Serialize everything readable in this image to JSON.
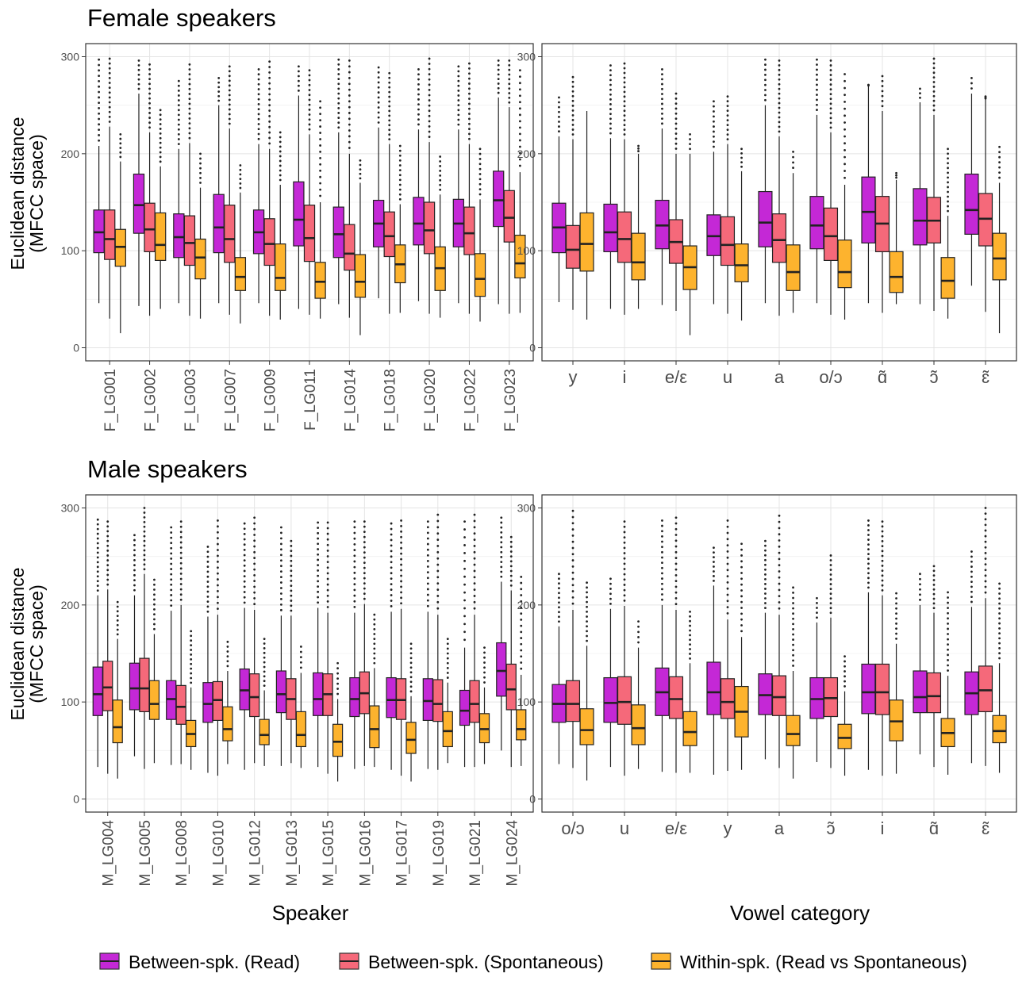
{
  "legend": {
    "items": [
      {
        "label": "Between-spk. (Read)",
        "color": "#C428D6"
      },
      {
        "label": "Between-spk. (Spontaneous)",
        "color": "#F5697A"
      },
      {
        "label": "Within-spk. (Read vs Spontaneous)",
        "color": "#FDB32E"
      }
    ]
  },
  "rows": [
    {
      "title": "Female speakers"
    },
    {
      "title": "Male speakers"
    }
  ],
  "axis_labels": {
    "y": [
      "Euclidean distance",
      "(MFCC space)"
    ],
    "x_left": "Speaker",
    "x_right": "Vowel category"
  },
  "chart_data": [
    {
      "type": "box",
      "panel": "female-speaker",
      "ylim": [
        0,
        300
      ],
      "yticks": [
        0,
        100,
        200,
        300
      ],
      "grid": true,
      "categories": [
        "F_LG001",
        "F_LG002",
        "F_LG003",
        "F_LG007",
        "F_LG009",
        "F_LG011",
        "F_LG014",
        "F_LG018",
        "F_LG020",
        "F_LG022",
        "F_LG023"
      ],
      "series": [
        {
          "name": "Between-spk. (Read)",
          "medians": [
            119,
            147,
            114,
            124,
            119,
            132,
            117,
            128,
            128,
            128,
            152
          ],
          "q1": [
            98,
            118,
            93,
            98,
            97,
            105,
            93,
            104,
            106,
            104,
            125
          ],
          "q3": [
            142,
            179,
            138,
            158,
            142,
            171,
            145,
            152,
            155,
            153,
            182
          ],
          "whisker_low": [
            46,
            43,
            46,
            46,
            46,
            40,
            45,
            51,
            48,
            46,
            45
          ],
          "whisker_high": [
            208,
            262,
            205,
            250,
            210,
            260,
            222,
            227,
            225,
            225,
            258
          ],
          "outlier_max": [
            297,
            296,
            275,
            278,
            287,
            290,
            297,
            289,
            287,
            290,
            296
          ]
        },
        {
          "name": "Between-spk. (Spontaneous)",
          "medians": [
            112,
            122,
            108,
            112,
            107,
            113,
            97,
            115,
            121,
            118,
            134
          ],
          "q1": [
            91,
            99,
            85,
            88,
            85,
            89,
            80,
            94,
            97,
            96,
            109
          ],
          "q3": [
            142,
            149,
            136,
            147,
            133,
            147,
            127,
            140,
            150,
            145,
            162
          ],
          "whisker_low": [
            30,
            33,
            33,
            34,
            33,
            34,
            31,
            35,
            35,
            35,
            35
          ],
          "whisker_high": [
            228,
            222,
            211,
            226,
            205,
            220,
            200,
            210,
            212,
            210,
            248
          ],
          "outlier_max": [
            298,
            292,
            292,
            290,
            295,
            286,
            296,
            283,
            298,
            293,
            296
          ]
        },
        {
          "name": "Within-spk. (Read vs Spontaneous)",
          "medians": [
            104,
            106,
            93,
            73,
            72,
            68,
            68,
            86,
            82,
            71,
            87
          ],
          "q1": [
            84,
            90,
            71,
            59,
            59,
            51,
            52,
            67,
            59,
            53,
            72
          ],
          "q3": [
            122,
            139,
            112,
            93,
            107,
            88,
            96,
            106,
            104,
            97,
            116
          ],
          "whisker_low": [
            15,
            40,
            30,
            25,
            29,
            30,
            13,
            36,
            31,
            27,
            36
          ],
          "whisker_high": [
            192,
            187,
            165,
            160,
            168,
            150,
            170,
            148,
            158,
            153,
            181
          ],
          "outlier_max": [
            220,
            245,
            200,
            188,
            222,
            254,
            193,
            208,
            197,
            205,
            286
          ]
        }
      ]
    },
    {
      "type": "box",
      "panel": "female-vowel",
      "ylim": [
        0,
        300
      ],
      "yticks": [
        0,
        100,
        200,
        300
      ],
      "grid": true,
      "categories": [
        "y",
        "i",
        "e/ε",
        "u",
        "a",
        "o/ɔ",
        "ɑ̃",
        "ɔ̃",
        "ɛ̃"
      ],
      "series": [
        {
          "name": "Between-spk. (Read)",
          "medians": [
            124,
            119,
            126,
            115,
            129,
            126,
            140,
            131,
            142
          ],
          "q1": [
            98,
            99,
            102,
            95,
            104,
            102,
            108,
            106,
            117
          ],
          "q3": [
            149,
            148,
            152,
            137,
            161,
            156,
            176,
            164,
            179
          ],
          "whisker_low": [
            47,
            40,
            44,
            45,
            46,
            46,
            46,
            45,
            64
          ],
          "whisker_high": [
            218,
            216,
            226,
            202,
            250,
            240,
            270,
            253,
            262
          ],
          "outlier_max": [
            258,
            291,
            287,
            254,
            297,
            297,
            271,
            267,
            278
          ]
        },
        {
          "name": "Between-spk. (Spontaneous)",
          "medians": [
            101,
            112,
            109,
            106,
            111,
            115,
            128,
            131,
            133
          ],
          "q1": [
            82,
            88,
            87,
            85,
            88,
            90,
            99,
            108,
            105
          ],
          "q3": [
            126,
            140,
            132,
            135,
            138,
            144,
            156,
            155,
            159
          ],
          "whisker_low": [
            39,
            34,
            38,
            35,
            33,
            34,
            36,
            38,
            37
          ],
          "whisker_high": [
            215,
            215,
            200,
            210,
            218,
            222,
            244,
            240,
            256
          ],
          "outlier_max": [
            279,
            293,
            262,
            259,
            296,
            296,
            280,
            298,
            259
          ]
        },
        {
          "name": "Within-spk. (Read vs Spontaneous)",
          "medians": [
            107,
            88,
            83,
            85,
            78,
            78,
            73,
            69,
            92
          ],
          "q1": [
            79,
            70,
            60,
            68,
            59,
            62,
            57,
            51,
            70
          ],
          "q3": [
            139,
            118,
            105,
            107,
            106,
            111,
            99,
            93,
            118
          ],
          "whisker_low": [
            29,
            40,
            13,
            28,
            36,
            29,
            45,
            30,
            15
          ],
          "whisker_high": [
            244,
            200,
            200,
            182,
            180,
            168,
            173,
            136,
            170
          ],
          "outlier_max": [
            244,
            208,
            220,
            205,
            202,
            282,
            180,
            205,
            207
          ]
        }
      ]
    },
    {
      "type": "box",
      "panel": "male-speaker",
      "ylim": [
        0,
        300
      ],
      "yticks": [
        0,
        100,
        200,
        300
      ],
      "grid": true,
      "categories": [
        "M_LG004",
        "M_LG005",
        "M_LG008",
        "M_LG010",
        "M_LG012",
        "M_LG013",
        "M_LG015",
        "M_LG016",
        "M_LG017",
        "M_LG019",
        "M_LG021",
        "M_LG024"
      ],
      "series": [
        {
          "name": "Between-spk. (Read)",
          "medians": [
            108,
            114,
            103,
            98,
            112,
            108,
            103,
            103,
            102,
            101,
            91,
            132
          ],
          "q1": [
            86,
            92,
            82,
            79,
            92,
            89,
            86,
            85,
            84,
            81,
            76,
            106
          ],
          "q3": [
            136,
            140,
            122,
            120,
            134,
            132,
            130,
            125,
            125,
            124,
            112,
            161
          ],
          "whisker_low": [
            33,
            44,
            35,
            27,
            30,
            34,
            33,
            31,
            30,
            31,
            33,
            50
          ],
          "whisker_high": [
            210,
            210,
            194,
            188,
            197,
            189,
            197,
            192,
            193,
            193,
            156,
            224
          ],
          "outlier_max": [
            288,
            272,
            280,
            260,
            284,
            280,
            285,
            286,
            284,
            286,
            286,
            290
          ]
        },
        {
          "name": "Between-spk. (Spontaneous)",
          "medians": [
            115,
            114,
            95,
            102,
            105,
            103,
            108,
            109,
            102,
            98,
            98,
            113
          ],
          "q1": [
            91,
            90,
            77,
            81,
            85,
            82,
            86,
            88,
            82,
            80,
            79,
            92
          ],
          "q3": [
            142,
            145,
            117,
            121,
            129,
            124,
            129,
            131,
            124,
            123,
            122,
            139
          ],
          "whisker_low": [
            26,
            31,
            36,
            24,
            37,
            37,
            26,
            34,
            24,
            30,
            33,
            33
          ],
          "whisker_high": [
            216,
            232,
            200,
            190,
            195,
            189,
            192,
            201,
            196,
            190,
            190,
            215
          ],
          "outlier_max": [
            286,
            300,
            286,
            287,
            290,
            266,
            285,
            286,
            287,
            293,
            293,
            270
          ]
        },
        {
          "name": "Within-spk. (Read vs Spontaneous)",
          "medians": [
            74,
            98,
            67,
            72,
            66,
            66,
            59,
            72,
            61,
            70,
            72,
            72
          ],
          "q1": [
            58,
            82,
            54,
            60,
            56,
            54,
            44,
            53,
            47,
            54,
            58,
            61
          ],
          "q3": [
            102,
            122,
            81,
            95,
            82,
            90,
            77,
            96,
            79,
            90,
            88,
            92
          ],
          "whisker_low": [
            21,
            37,
            30,
            36,
            34,
            32,
            18,
            33,
            18,
            37,
            36,
            34
          ],
          "whisker_high": [
            165,
            170,
            115,
            132,
            112,
            130,
            103,
            135,
            106,
            120,
            115,
            128
          ],
          "outlier_max": [
            203,
            226,
            173,
            162,
            165,
            157,
            140,
            190,
            160,
            165,
            156,
            229
          ]
        }
      ]
    },
    {
      "type": "box",
      "panel": "male-vowel",
      "ylim": [
        0,
        300
      ],
      "yticks": [
        0,
        100,
        200,
        300
      ],
      "grid": true,
      "categories": [
        "o/ɔ",
        "u",
        "e/ε",
        "y",
        "a",
        "ɔ̃",
        "i",
        "ɑ̃",
        "ɛ̃"
      ],
      "series": [
        {
          "name": "Between-spk. (Read)",
          "medians": [
            98,
            99,
            110,
            110,
            107,
            103,
            110,
            105,
            109
          ],
          "q1": [
            79,
            79,
            86,
            87,
            87,
            83,
            88,
            89,
            87
          ],
          "q3": [
            118,
            125,
            135,
            141,
            129,
            125,
            139,
            132,
            131
          ],
          "whisker_low": [
            36,
            33,
            28,
            25,
            41,
            38,
            30,
            46,
            37
          ],
          "whisker_high": [
            178,
            196,
            200,
            220,
            192,
            182,
            213,
            200,
            198
          ],
          "outlier_max": [
            232,
            227,
            287,
            259,
            266,
            207,
            287,
            232,
            255
          ]
        },
        {
          "name": "Between-spk. (Spontaneous)",
          "medians": [
            98,
            100,
            103,
            100,
            105,
            104,
            110,
            106,
            112
          ],
          "q1": [
            80,
            77,
            83,
            83,
            86,
            85,
            87,
            89,
            90
          ],
          "q3": [
            122,
            126,
            126,
            124,
            127,
            125,
            139,
            130,
            137
          ],
          "whisker_low": [
            32,
            24,
            27,
            29,
            32,
            32,
            24,
            33,
            34
          ],
          "whisker_high": [
            195,
            199,
            195,
            185,
            190,
            187,
            210,
            192,
            207
          ],
          "outlier_max": [
            297,
            286,
            290,
            287,
            292,
            251,
            286,
            240,
            300
          ]
        },
        {
          "name": "Within-spk. (Read vs Spontaneous)",
          "medians": [
            71,
            73,
            69,
            90,
            67,
            63,
            80,
            68,
            70
          ],
          "q1": [
            56,
            56,
            55,
            64,
            55,
            52,
            60,
            54,
            58
          ],
          "q3": [
            93,
            97,
            90,
            116,
            86,
            77,
            102,
            83,
            86
          ],
          "whisker_low": [
            19,
            31,
            27,
            30,
            21,
            24,
            26,
            25,
            27
          ],
          "whisker_high": [
            158,
            156,
            140,
            167,
            132,
            111,
            160,
            127,
            140
          ],
          "outlier_max": [
            223,
            183,
            193,
            263,
            218,
            147,
            212,
            213,
            222
          ]
        }
      ]
    }
  ]
}
